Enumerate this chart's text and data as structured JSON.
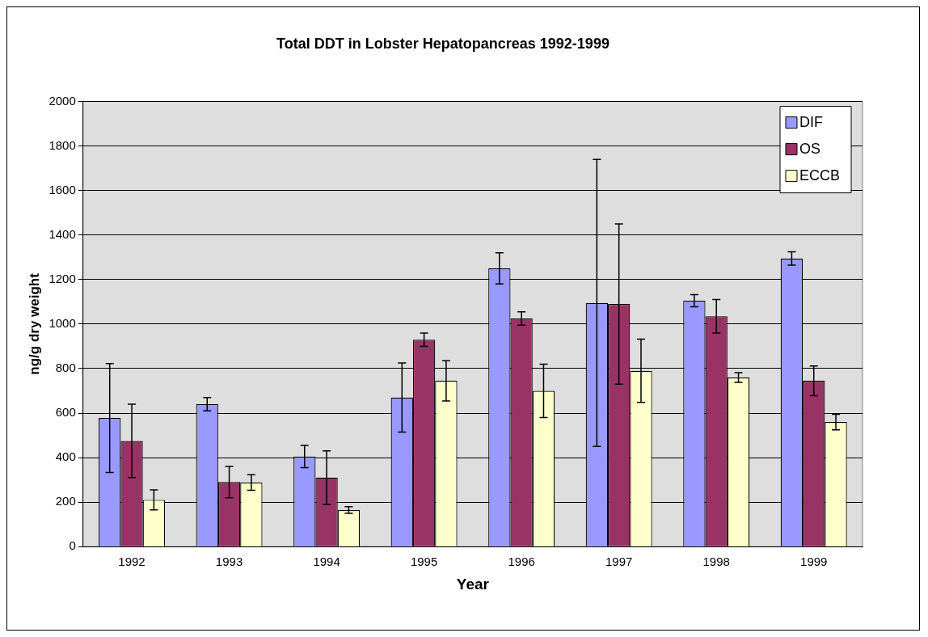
{
  "chart_data": {
    "type": "bar",
    "title": "Total DDT in Lobster Hepatopancreas 1992-1999",
    "xlabel": "Year",
    "ylabel": "ng/g dry weight",
    "categories": [
      "1992",
      "1993",
      "1994",
      "1995",
      "1996",
      "1997",
      "1998",
      "1999"
    ],
    "series": [
      {
        "name": "DIF",
        "color": "#9999ff",
        "values": [
          578,
          640,
          405,
          670,
          1250,
          1095,
          1105,
          1295
        ],
        "errors": [
          245,
          30,
          50,
          155,
          70,
          645,
          27,
          30
        ]
      },
      {
        "name": "OS",
        "color": "#993366",
        "values": [
          475,
          290,
          310,
          930,
          1025,
          1090,
          1035,
          745
        ],
        "errors": [
          165,
          70,
          120,
          30,
          30,
          360,
          75,
          67
        ]
      },
      {
        "name": "ECCB",
        "color": "#ffffcc",
        "values": [
          210,
          288,
          165,
          745,
          700,
          790,
          760,
          560
        ],
        "errors": [
          45,
          35,
          15,
          90,
          120,
          142,
          22,
          35
        ]
      }
    ],
    "ylim": [
      0,
      2000
    ],
    "yticks": [
      0,
      200,
      400,
      600,
      800,
      1000,
      1200,
      1400,
      1600,
      1800,
      2000
    ],
    "grid": "y",
    "legend": "top right"
  }
}
